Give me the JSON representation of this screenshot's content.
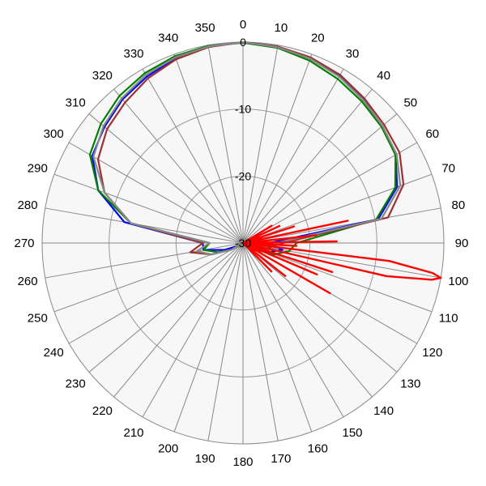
{
  "chart_data": {
    "type": "polar-line",
    "title": "",
    "angle_unit": "degrees",
    "angle_ticks": [
      "0",
      "10",
      "20",
      "30",
      "40",
      "50",
      "60",
      "70",
      "80",
      "90",
      "100",
      "110",
      "120",
      "130",
      "140",
      "150",
      "160",
      "170",
      "180",
      "190",
      "200",
      "210",
      "220",
      "230",
      "240",
      "250",
      "260",
      "270",
      "280",
      "290",
      "300",
      "310",
      "320",
      "330",
      "340",
      "350"
    ],
    "radial_ticks": [
      "0",
      "-10",
      "-20",
      "-30"
    ],
    "radial_range": [
      -30,
      0
    ],
    "grid": true,
    "background": "#f7f7f7",
    "series": [
      {
        "color": "#0000ff",
        "points": [
          [
            0,
            0
          ],
          [
            10,
            -0.2
          ],
          [
            20,
            -0.6
          ],
          [
            30,
            -1.2
          ],
          [
            40,
            -2.0
          ],
          [
            50,
            -2.9
          ],
          [
            60,
            -3.7
          ],
          [
            70,
            -5.5
          ],
          [
            80,
            -9.5
          ],
          [
            90,
            -26
          ],
          [
            100,
            -24
          ],
          [
            110,
            -26
          ],
          [
            120,
            -29
          ],
          [
            150,
            -30
          ],
          [
            210,
            -30
          ],
          [
            240,
            -29
          ],
          [
            250,
            -27
          ],
          [
            260,
            -24
          ],
          [
            270,
            -24
          ],
          [
            280,
            -12
          ],
          [
            290,
            -7
          ],
          [
            300,
            -4
          ],
          [
            310,
            -3.0
          ],
          [
            320,
            -2.0
          ],
          [
            330,
            -1.3
          ],
          [
            340,
            -0.6
          ],
          [
            350,
            -0.2
          ],
          [
            360,
            0
          ]
        ]
      },
      {
        "color": "#008000",
        "points": [
          [
            0,
            -0.1
          ],
          [
            10,
            -0.4
          ],
          [
            20,
            -1.0
          ],
          [
            30,
            -1.7
          ],
          [
            40,
            -2.4
          ],
          [
            50,
            -3.0
          ],
          [
            60,
            -3.7
          ],
          [
            70,
            -5.8
          ],
          [
            80,
            -9.8
          ],
          [
            90,
            -22
          ],
          [
            100,
            -23
          ],
          [
            110,
            -25
          ],
          [
            120,
            -28
          ],
          [
            150,
            -30
          ],
          [
            210,
            -30
          ],
          [
            240,
            -28
          ],
          [
            250,
            -26
          ],
          [
            260,
            -24
          ],
          [
            270,
            -25
          ],
          [
            280,
            -13
          ],
          [
            290,
            -7
          ],
          [
            300,
            -3.6
          ],
          [
            310,
            -2.3
          ],
          [
            320,
            -1.3
          ],
          [
            330,
            -0.7
          ],
          [
            340,
            -0.3
          ],
          [
            350,
            -0.1
          ],
          [
            360,
            -0.1
          ]
        ]
      },
      {
        "color": "#993333",
        "points": [
          [
            0,
            0
          ],
          [
            10,
            -0.2
          ],
          [
            20,
            -0.5
          ],
          [
            30,
            -1.0
          ],
          [
            40,
            -1.8
          ],
          [
            50,
            -2.5
          ],
          [
            60,
            -3.0
          ],
          [
            70,
            -4.5
          ],
          [
            80,
            -8
          ],
          [
            90,
            -24
          ],
          [
            100,
            -26
          ],
          [
            110,
            -27
          ],
          [
            120,
            -29
          ],
          [
            150,
            -30
          ],
          [
            210,
            -30
          ],
          [
            240,
            -28
          ],
          [
            250,
            -25
          ],
          [
            260,
            -22
          ],
          [
            270,
            -24
          ],
          [
            280,
            -13
          ],
          [
            290,
            -8
          ],
          [
            300,
            -5.0
          ],
          [
            310,
            -3.5
          ],
          [
            320,
            -2.6
          ],
          [
            330,
            -1.6
          ],
          [
            340,
            -0.8
          ],
          [
            350,
            -0.3
          ],
          [
            360,
            0
          ]
        ]
      },
      {
        "color": "#888888",
        "points": [
          [
            0,
            0
          ],
          [
            10,
            -0.3
          ],
          [
            20,
            -0.7
          ],
          [
            30,
            -1.3
          ],
          [
            40,
            -2.1
          ],
          [
            50,
            -2.8
          ],
          [
            60,
            -3.5
          ],
          [
            70,
            -5.0
          ],
          [
            80,
            -9
          ],
          [
            90,
            -25
          ],
          [
            100,
            -25
          ],
          [
            110,
            -27
          ],
          [
            120,
            -29
          ],
          [
            150,
            -30
          ],
          [
            210,
            -30
          ],
          [
            240,
            -28
          ],
          [
            250,
            -25
          ],
          [
            260,
            -23
          ],
          [
            270,
            -25
          ],
          [
            280,
            -13
          ],
          [
            290,
            -8
          ],
          [
            300,
            -4.2
          ],
          [
            310,
            -2.8
          ],
          [
            320,
            -1.8
          ],
          [
            330,
            -1.0
          ],
          [
            340,
            -0.5
          ],
          [
            350,
            -0.2
          ],
          [
            360,
            0
          ]
        ]
      },
      {
        "color": "#ff0000",
        "points": [
          [
            0,
            -30
          ],
          [
            30,
            -30
          ],
          [
            50,
            -30
          ],
          [
            57,
            -30
          ],
          [
            59,
            -25
          ],
          [
            60,
            -30
          ],
          [
            63,
            -30
          ],
          [
            65,
            -24
          ],
          [
            67,
            -30
          ],
          [
            70,
            -30
          ],
          [
            72,
            -22
          ],
          [
            74,
            -30
          ],
          [
            76,
            -30
          ],
          [
            78,
            -14
          ],
          [
            80,
            -30
          ],
          [
            82,
            -30
          ],
          [
            84,
            -19
          ],
          [
            86,
            -30
          ],
          [
            87,
            -30
          ],
          [
            89,
            -16
          ],
          [
            91,
            -30
          ],
          [
            93,
            -22
          ],
          [
            95,
            -30
          ],
          [
            97,
            -8
          ],
          [
            99,
            -1.3
          ],
          [
            100,
            0
          ],
          [
            101,
            -1.3
          ],
          [
            103,
            -8
          ],
          [
            105,
            -30
          ],
          [
            106,
            -30
          ],
          [
            108,
            -16
          ],
          [
            109,
            -30
          ],
          [
            111,
            -30
          ],
          [
            113,
            -18
          ],
          [
            115,
            -30
          ],
          [
            117,
            -30
          ],
          [
            120,
            -15
          ],
          [
            123,
            -30
          ],
          [
            126,
            -30
          ],
          [
            128,
            -22
          ],
          [
            130,
            -30
          ],
          [
            133,
            -30
          ],
          [
            135,
            -24
          ],
          [
            137,
            -30
          ],
          [
            140,
            -30
          ],
          [
            360,
            -30
          ]
        ]
      }
    ]
  }
}
